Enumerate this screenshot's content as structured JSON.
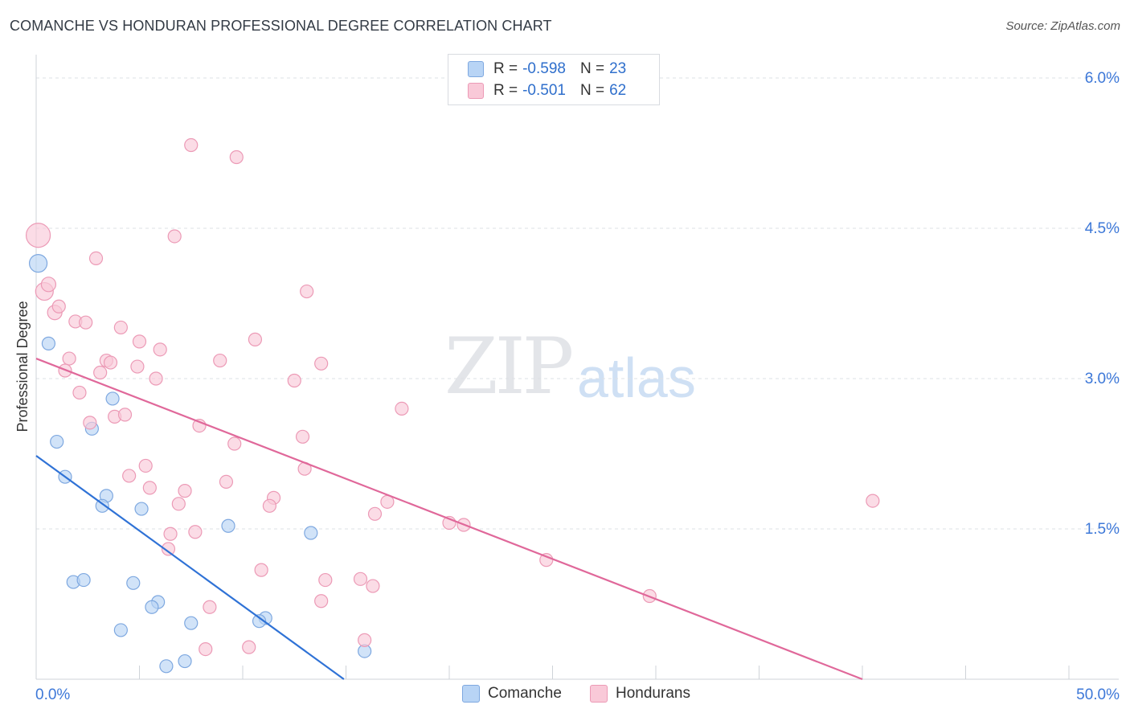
{
  "title": "COMANCHE VS HONDURAN PROFESSIONAL DEGREE CORRELATION CHART",
  "source": "Source: ZipAtlas.com",
  "watermark": {
    "part1": "ZIP",
    "part2": "atlas"
  },
  "legend": {
    "rows": [
      {
        "r_label": "R =",
        "r_value": "-0.598",
        "n_label": "N =",
        "n_value": "23",
        "color": "#b8d4f5",
        "border": "#7ea8e0"
      },
      {
        "r_label": "R =",
        "r_value": "-0.501",
        "n_label": "N =",
        "n_value": "62",
        "color": "#f9c9d8",
        "border": "#ec9ab6"
      }
    ]
  },
  "bottom_legend": [
    {
      "label": "Comanche",
      "color": "#b8d4f5",
      "border": "#7ea8e0"
    },
    {
      "label": "Hondurans",
      "color": "#f9c9d8",
      "border": "#ec9ab6"
    }
  ],
  "chart_data": {
    "type": "scatter",
    "title": "COMANCHE VS HONDURAN PROFESSIONAL DEGREE CORRELATION CHART",
    "xlabel": "",
    "ylabel": "Professional Degree",
    "xlim": [
      0,
      50
    ],
    "ylim": [
      0,
      6.3
    ],
    "x_tick_labels": [
      "0.0%",
      "50.0%"
    ],
    "y_ticks": [
      1.5,
      3.0,
      4.5,
      6.0
    ],
    "y_tick_labels": [
      "1.5%",
      "3.0%",
      "4.5%",
      "6.0%"
    ],
    "grid": true,
    "legend_position": "top-center",
    "series": [
      {
        "name": "Comanche",
        "color": "#7ea8e0",
        "fill": "#b8d4f5",
        "line_color": "#2f72d6",
        "trend": {
          "x0": 0,
          "y0": 2.23,
          "x1": 14.9,
          "y1": 0
        },
        "points": [
          [
            0.1,
            4.15,
            22
          ],
          [
            0.6,
            3.35,
            16
          ],
          [
            1.0,
            2.37,
            16
          ],
          [
            1.4,
            2.02,
            16
          ],
          [
            3.7,
            2.8,
            16
          ],
          [
            2.7,
            2.5,
            16
          ],
          [
            3.4,
            1.83,
            16
          ],
          [
            3.2,
            1.73,
            16
          ],
          [
            5.1,
            1.7,
            16
          ],
          [
            9.3,
            1.53,
            16
          ],
          [
            13.3,
            1.46,
            16
          ],
          [
            1.8,
            0.97,
            16
          ],
          [
            2.3,
            0.99,
            16
          ],
          [
            4.7,
            0.96,
            16
          ],
          [
            5.9,
            0.77,
            16
          ],
          [
            5.6,
            0.72,
            16
          ],
          [
            7.5,
            0.56,
            16
          ],
          [
            11.1,
            0.61,
            16
          ],
          [
            10.8,
            0.58,
            16
          ],
          [
            4.1,
            0.49,
            16
          ],
          [
            15.9,
            0.28,
            16
          ],
          [
            7.2,
            0.18,
            16
          ],
          [
            6.3,
            0.13,
            16
          ]
        ]
      },
      {
        "name": "Hondurans",
        "color": "#ec9ab6",
        "fill": "#f9c9d8",
        "line_color": "#e0689a",
        "trend": {
          "x0": 0,
          "y0": 3.2,
          "x1": 40.0,
          "y1": 0
        },
        "points": [
          [
            0.1,
            4.43,
            30
          ],
          [
            0.4,
            3.87,
            22
          ],
          [
            0.6,
            3.94,
            18
          ],
          [
            0.9,
            3.66,
            18
          ],
          [
            1.1,
            3.72,
            16
          ],
          [
            7.5,
            5.33,
            16
          ],
          [
            9.7,
            5.21,
            16
          ],
          [
            6.7,
            4.42,
            16
          ],
          [
            2.9,
            4.2,
            16
          ],
          [
            13.1,
            3.87,
            16
          ],
          [
            1.9,
            3.57,
            16
          ],
          [
            2.4,
            3.56,
            16
          ],
          [
            4.1,
            3.51,
            16
          ],
          [
            5.0,
            3.37,
            16
          ],
          [
            10.6,
            3.39,
            16
          ],
          [
            6.0,
            3.29,
            16
          ],
          [
            1.6,
            3.2,
            16
          ],
          [
            3.4,
            3.18,
            16
          ],
          [
            3.6,
            3.16,
            16
          ],
          [
            8.9,
            3.18,
            16
          ],
          [
            13.8,
            3.15,
            16
          ],
          [
            1.4,
            3.08,
            16
          ],
          [
            3.1,
            3.06,
            16
          ],
          [
            4.9,
            3.12,
            16
          ],
          [
            5.8,
            3.0,
            16
          ],
          [
            12.5,
            2.98,
            16
          ],
          [
            2.1,
            2.86,
            16
          ],
          [
            17.7,
            2.7,
            16
          ],
          [
            3.8,
            2.62,
            16
          ],
          [
            4.3,
            2.64,
            16
          ],
          [
            2.6,
            2.56,
            16
          ],
          [
            7.9,
            2.53,
            16
          ],
          [
            12.9,
            2.42,
            16
          ],
          [
            9.6,
            2.35,
            16
          ],
          [
            5.3,
            2.13,
            16
          ],
          [
            4.5,
            2.03,
            16
          ],
          [
            13.0,
            2.1,
            16
          ],
          [
            9.2,
            1.97,
            16
          ],
          [
            5.5,
            1.91,
            16
          ],
          [
            7.2,
            1.88,
            16
          ],
          [
            11.5,
            1.81,
            16
          ],
          [
            6.9,
            1.75,
            16
          ],
          [
            11.3,
            1.73,
            16
          ],
          [
            17.0,
            1.77,
            16
          ],
          [
            16.4,
            1.65,
            16
          ],
          [
            40.5,
            1.78,
            16
          ],
          [
            20.0,
            1.56,
            16
          ],
          [
            20.7,
            1.54,
            16
          ],
          [
            7.7,
            1.47,
            16
          ],
          [
            6.5,
            1.45,
            16
          ],
          [
            6.4,
            1.3,
            16
          ],
          [
            24.7,
            1.19,
            16
          ],
          [
            10.9,
            1.09,
            16
          ],
          [
            14.0,
            0.99,
            16
          ],
          [
            15.7,
            1.0,
            16
          ],
          [
            16.3,
            0.93,
            16
          ],
          [
            29.7,
            0.83,
            16
          ],
          [
            13.8,
            0.78,
            16
          ],
          [
            8.4,
            0.72,
            16
          ],
          [
            15.9,
            0.39,
            16
          ],
          [
            10.3,
            0.32,
            16
          ],
          [
            8.2,
            0.3,
            16
          ]
        ]
      }
    ]
  }
}
